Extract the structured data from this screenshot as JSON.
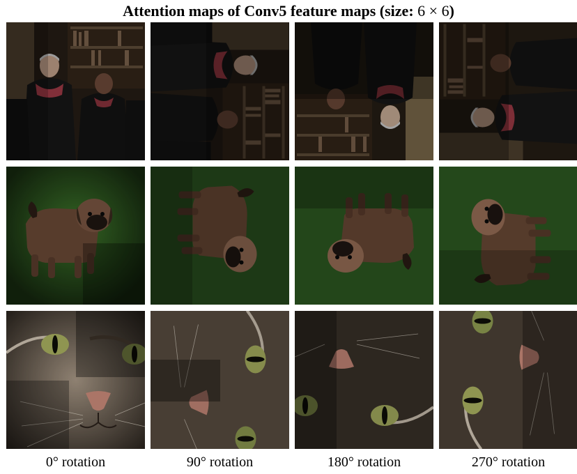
{
  "title": {
    "main": "Attention maps of Conv5 feature maps (size:",
    "size": "6 × 6",
    "close": ")"
  },
  "rows": [
    {
      "subject": "people-in-academic-robes",
      "icon": "graduates-photo-icon"
    },
    {
      "subject": "puppy-on-grass",
      "icon": "puppy-photo-icon"
    },
    {
      "subject": "cat-face-closeup",
      "icon": "cat-photo-icon"
    }
  ],
  "columns": [
    {
      "label": "0° rotation",
      "angle": 0
    },
    {
      "label": "90° rotation",
      "angle": 90
    },
    {
      "label": "180° rotation",
      "angle": 180
    },
    {
      "label": "270° rotation",
      "angle": 270
    }
  ],
  "colors": {
    "robe": "#1a1a1a",
    "hood": "#b3424f",
    "wall": "#5a4a36",
    "bookshelf": "#3a2a1c",
    "grass": "#2f5a22",
    "puppy": "#6b4a36",
    "cat_fur": "#8a7c6c",
    "cat_eye": "#a8b060",
    "cat_nose": "#c98a7a"
  }
}
